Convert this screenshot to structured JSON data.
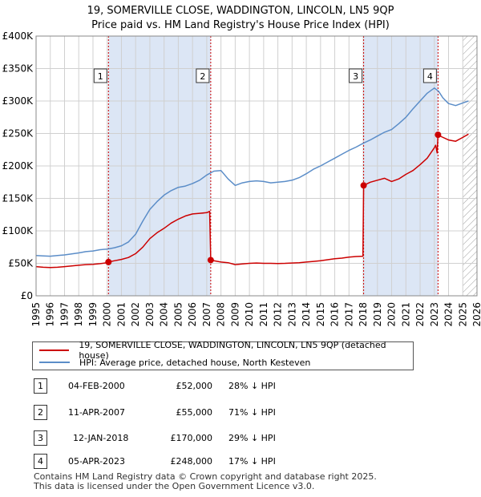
{
  "title_line1": "19, SOMERVILLE CLOSE, WADDINGTON, LINCOLN, LN5 9QP",
  "title_line2": "Price paid vs. HM Land Registry's House Price Index (HPI)",
  "colors": {
    "property": "#cc0000",
    "hpi": "#5b8dc8",
    "shade": "#dce6f5",
    "grid": "#d0d0d0"
  },
  "chart_data": {
    "type": "line",
    "xlim": [
      1995,
      2026
    ],
    "ylim": [
      0,
      400000
    ],
    "yticks": [
      {
        "value": 0,
        "label": "£0"
      },
      {
        "value": 50000,
        "label": "£50K"
      },
      {
        "value": 100000,
        "label": "£100K"
      },
      {
        "value": 150000,
        "label": "£150K"
      },
      {
        "value": 200000,
        "label": "£200K"
      },
      {
        "value": 250000,
        "label": "£250K"
      },
      {
        "value": 300000,
        "label": "£300K"
      },
      {
        "value": 350000,
        "label": "£350K"
      },
      {
        "value": 400000,
        "label": "£400K"
      }
    ],
    "xticks": [
      "1995",
      "1996",
      "1997",
      "1998",
      "1999",
      "2000",
      "2001",
      "2002",
      "2003",
      "2004",
      "2005",
      "2006",
      "2007",
      "2008",
      "2009",
      "2010",
      "2011",
      "2012",
      "2013",
      "2014",
      "2015",
      "2016",
      "2017",
      "2018",
      "2019",
      "2020",
      "2021",
      "2022",
      "2023",
      "2024",
      "2025",
      "2026"
    ],
    "shaded_ranges": [
      [
        2000.09,
        2007.28
      ],
      [
        2018.03,
        2023.26
      ]
    ],
    "hatch_from": 2025.0,
    "series": [
      {
        "name": "19, SOMERVILLE CLOSE, WADDINGTON, LINCOLN, LN5 9QP (detached house)",
        "x": [
          1995.0,
          1995.5,
          1996.0,
          1996.5,
          1997.0,
          1997.5,
          1998.0,
          1998.5,
          1999.0,
          1999.5,
          2000.0,
          2000.09,
          2000.5,
          2001.0,
          2001.5,
          2002.0,
          2002.5,
          2003.0,
          2003.5,
          2004.0,
          2004.5,
          2005.0,
          2005.5,
          2006.0,
          2006.5,
          2007.0,
          2007.2,
          2007.28,
          2007.5,
          2008.0,
          2008.5,
          2009.0,
          2009.5,
          2010.0,
          2010.5,
          2011.0,
          2011.5,
          2012.0,
          2012.5,
          2013.0,
          2013.5,
          2014.0,
          2014.5,
          2015.0,
          2015.5,
          2016.0,
          2016.5,
          2017.0,
          2017.5,
          2017.98,
          2018.03,
          2018.5,
          2019.0,
          2019.5,
          2020.0,
          2020.5,
          2021.0,
          2021.5,
          2022.0,
          2022.5,
          2023.0,
          2023.1,
          2023.2,
          2023.26,
          2023.5,
          2024.0,
          2024.5,
          2025.0,
          2025.4
        ],
        "values": [
          45000,
          44000,
          43500,
          44000,
          45000,
          46000,
          47000,
          48000,
          48500,
          49500,
          51000,
          52000,
          54000,
          56000,
          59000,
          65000,
          75000,
          88000,
          97000,
          104000,
          112000,
          118000,
          123000,
          126000,
          127000,
          128000,
          130000,
          55000,
          54000,
          52000,
          51000,
          48000,
          49000,
          50000,
          50500,
          50000,
          50000,
          49800,
          50000,
          50500,
          51000,
          52000,
          53000,
          54000,
          55500,
          57000,
          58000,
          59500,
          60500,
          61000,
          170000,
          175000,
          178000,
          181000,
          176000,
          180000,
          187000,
          193000,
          202000,
          212000,
          228000,
          232000,
          220000,
          248000,
          245000,
          240000,
          238000,
          244000,
          249000
        ]
      },
      {
        "name": "HPI: Average price, detached house, North Kesteven",
        "x": [
          1995.0,
          1995.5,
          1996.0,
          1996.5,
          1997.0,
          1997.5,
          1998.0,
          1998.5,
          1999.0,
          1999.5,
          2000.0,
          2000.5,
          2001.0,
          2001.5,
          2002.0,
          2002.5,
          2003.0,
          2003.5,
          2004.0,
          2004.5,
          2005.0,
          2005.5,
          2006.0,
          2006.5,
          2007.0,
          2007.5,
          2008.0,
          2008.5,
          2009.0,
          2009.5,
          2010.0,
          2010.5,
          2011.0,
          2011.5,
          2012.0,
          2012.5,
          2013.0,
          2013.5,
          2014.0,
          2014.5,
          2015.0,
          2015.5,
          2016.0,
          2016.5,
          2017.0,
          2017.5,
          2018.0,
          2018.5,
          2019.0,
          2019.5,
          2020.0,
          2020.5,
          2021.0,
          2021.5,
          2022.0,
          2022.5,
          2023.0,
          2023.3,
          2023.6,
          2024.0,
          2024.5,
          2025.0,
          2025.4
        ],
        "values": [
          62000,
          61500,
          61000,
          62000,
          63000,
          64500,
          66000,
          68000,
          69000,
          71000,
          72000,
          74000,
          77000,
          83000,
          95000,
          115000,
          133000,
          145000,
          155000,
          162000,
          167000,
          169000,
          173000,
          178000,
          186000,
          192000,
          193000,
          180000,
          170000,
          174000,
          176000,
          177000,
          176000,
          174000,
          175000,
          176000,
          178000,
          182000,
          188000,
          195000,
          200000,
          206000,
          212000,
          218000,
          224000,
          229000,
          235000,
          240000,
          246000,
          252000,
          256000,
          265000,
          275000,
          288000,
          300000,
          312000,
          320000,
          315000,
          305000,
          296000,
          293000,
          297000,
          300000
        ]
      }
    ],
    "sales": [
      {
        "label": "1",
        "x": 2000.09,
        "value": 52000
      },
      {
        "label": "2",
        "x": 2007.28,
        "value": 55000
      },
      {
        "label": "3",
        "x": 2018.03,
        "value": 170000
      },
      {
        "label": "4",
        "x": 2023.26,
        "value": 248000
      }
    ]
  },
  "legend": {
    "property_label": "19, SOMERVILLE CLOSE, WADDINGTON, LINCOLN, LN5 9QP (detached house)",
    "hpi_label": "HPI: Average price, detached house, North Kesteven"
  },
  "sales_table": [
    {
      "num": "1",
      "date": "04-FEB-2000",
      "price": "£52,000",
      "hpi": "28% ↓ HPI"
    },
    {
      "num": "2",
      "date": "11-APR-2007",
      "price": "£55,000",
      "hpi": "71% ↓ HPI"
    },
    {
      "num": "3",
      "date": "12-JAN-2018",
      "price": "£170,000",
      "hpi": "29% ↓ HPI"
    },
    {
      "num": "4",
      "date": "05-APR-2023",
      "price": "£248,000",
      "hpi": "17% ↓ HPI"
    }
  ],
  "footer": {
    "line1": "Contains HM Land Registry data © Crown copyright and database right 2025.",
    "line2": "This data is licensed under the Open Government Licence v3.0."
  }
}
